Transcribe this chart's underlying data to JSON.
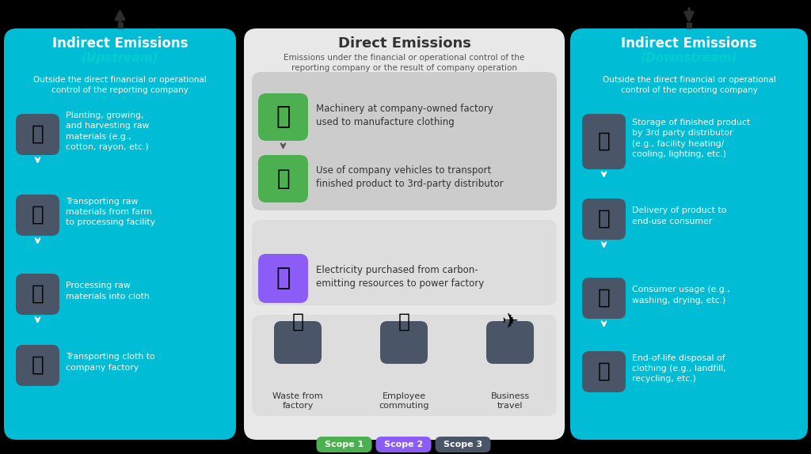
{
  "bg_color": "#000000",
  "left_panel_color": "#00BCD4",
  "center_panel_color": "#E8E8E8",
  "right_panel_color": "#00BCD4",
  "icon_bg_dark": "#4A5568",
  "icon_bg_green": "#4CAF50",
  "icon_bg_purple": "#8B5CF6",
  "white": "#FFFFFF",
  "cyan_text": "#00BCD4",
  "dark_text": "#333333",
  "scope_labels": [
    "Scope 1",
    "Scope 2",
    "Scope 3"
  ],
  "scope_colors": [
    "#4CAF50",
    "#8B5CF6",
    "#4A5568"
  ],
  "left_items": [
    "Planting, growing,\nand harvesting raw\nmaterials (e.g.,\ncotton, rayon, etc.)",
    "Transporting raw\nmaterials from farm\nto processing facility",
    "Processing raw\nmaterials into cloth",
    "Transporting cloth to\ncompany factory"
  ],
  "center_items_green": [
    "Machinery at company-owned factory\nused to manufacture clothing",
    "Use of company vehicles to transport\nfinished product to 3rd-party distributor"
  ],
  "center_item_purple": "Electricity purchased from carbon-\nemitting resources to power factory",
  "center_items_dark": [
    "Waste from\nfactory",
    "Employee\ncommuting",
    "Business\ntravel"
  ],
  "right_items": [
    "Storage of finished product\nby 3rd party distributor\n(e.g., facility heating/\ncooling, lighting, etc.)",
    "Delivery of product to\nend-use consumer",
    "Consumer usage (e.g.,\nwashing, drying, etc.)",
    "End-of-life disposal of\nclothing (e.g., landfill,\nrecycling, etc.)"
  ]
}
